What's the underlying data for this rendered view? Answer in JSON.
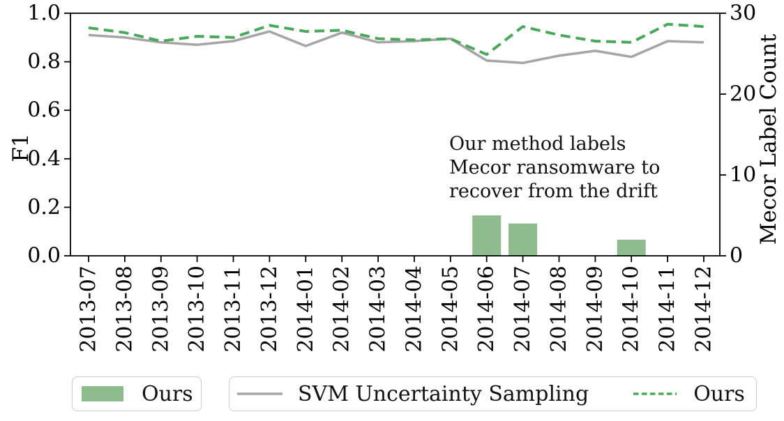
{
  "chart_data": {
    "type": "line+bar",
    "title": "",
    "categories": [
      "2013-07",
      "2013-08",
      "2013-09",
      "2013-10",
      "2013-11",
      "2013-12",
      "2014-01",
      "2014-02",
      "2014-03",
      "2014-04",
      "2014-05",
      "2014-06",
      "2014-07",
      "2014-08",
      "2014-09",
      "2014-10",
      "2014-11",
      "2014-12"
    ],
    "series": [
      {
        "name": "SVM Uncertainty Sampling",
        "kind": "line",
        "style": "solid",
        "axis": "left",
        "color": "#a5a5a5",
        "values": [
          0.91,
          0.9,
          0.88,
          0.87,
          0.885,
          0.925,
          0.865,
          0.92,
          0.88,
          0.885,
          0.895,
          0.805,
          0.795,
          0.825,
          0.845,
          0.82,
          0.885,
          0.88
        ]
      },
      {
        "name": "Ours",
        "kind": "line",
        "style": "dashed",
        "axis": "left",
        "color": "#4aa85c",
        "values": [
          0.94,
          0.92,
          0.885,
          0.905,
          0.9,
          0.95,
          0.925,
          0.93,
          0.895,
          0.89,
          0.895,
          0.83,
          0.945,
          0.91,
          0.885,
          0.88,
          0.955,
          0.945
        ]
      },
      {
        "name": "Ours",
        "kind": "bar",
        "axis": "right",
        "color": "#8fbc8f",
        "values": [
          0,
          0,
          0,
          0,
          0,
          0,
          0,
          0,
          0,
          0,
          0,
          5,
          4,
          0,
          0,
          2,
          0,
          0
        ]
      }
    ],
    "left_axis": {
      "label": "F1",
      "range": [
        0.0,
        1.0
      ],
      "tick_values": [
        0.0,
        0.2,
        0.4,
        0.6,
        0.8,
        1.0
      ],
      "tick_labels": [
        "0.0",
        "0.2",
        "0.4",
        "0.6",
        "0.8",
        "1.0"
      ]
    },
    "right_axis": {
      "label": "Mecor Label Count",
      "range": [
        0,
        30
      ],
      "tick_values": [
        0,
        10,
        20,
        30
      ],
      "tick_labels": [
        "0",
        "10",
        "20",
        "30"
      ]
    },
    "annotation": {
      "lines": [
        "Our method labels",
        "Mecor ransomware to",
        "recover from the drift"
      ]
    },
    "legend_position": "bottom",
    "grid": false
  },
  "legend": {
    "bars_label": "Ours",
    "svm_label": "SVM Uncertainty Sampling",
    "ours_line_label": "Ours"
  },
  "colors": {
    "bar_green": "#8fbc8f",
    "line_green": "#4aa85c",
    "line_gray": "#a5a5a5",
    "axis_black": "#000000",
    "legend_border": "#cccccc"
  }
}
